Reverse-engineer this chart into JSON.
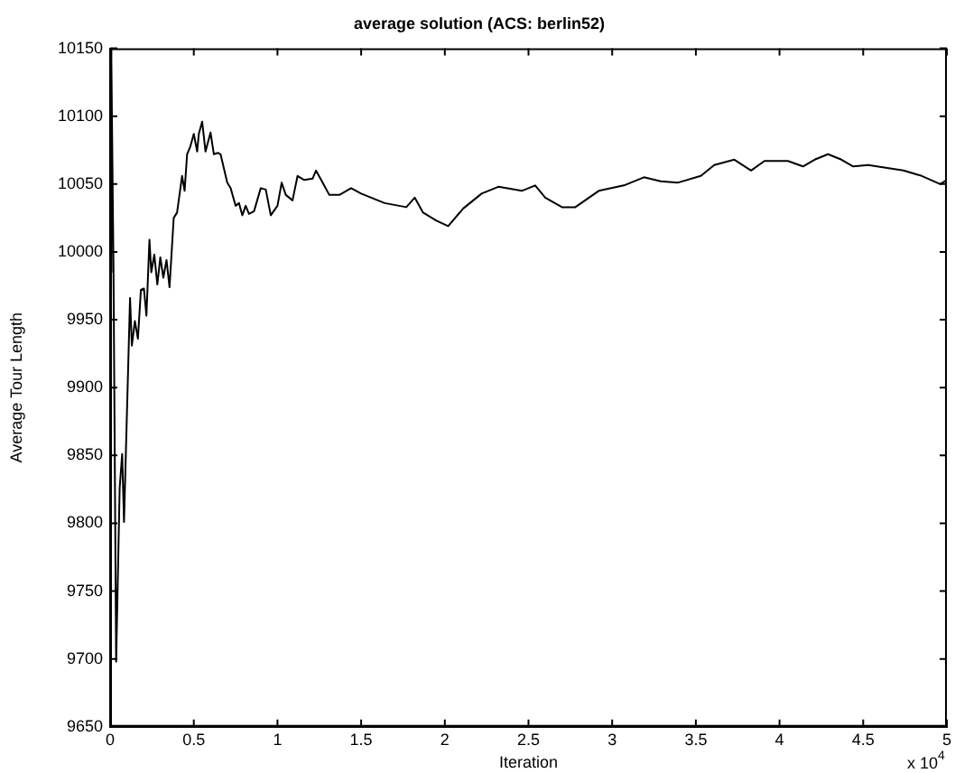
{
  "chart_data": {
    "type": "line",
    "title": "average solution (ACS: berlin52)",
    "xlabel": "Iteration",
    "ylabel": "Average Tour Length",
    "annotations": [
      "x 10$^{4}$"
    ],
    "xlim": [
      0,
      5
    ],
    "xticks": [
      0,
      0.5,
      1,
      1.5,
      2,
      2.5,
      3,
      3.5,
      4,
      4.5,
      5
    ],
    "ylim": [
      9650,
      10150
    ],
    "yticks": [
      9650,
      9700,
      9750,
      9800,
      9850,
      9900,
      9950,
      10000,
      10050,
      10100,
      10150
    ],
    "grid": false,
    "legend": false,
    "marker": "none",
    "line_style": "solid",
    "series": [
      {
        "color": "#000000",
        "x": [
          0,
          0.005,
          0.01,
          0.02,
          0.036,
          0.057,
          0.072,
          0.083,
          0.119,
          0.13,
          0.148,
          0.166,
          0.184,
          0.202,
          0.217,
          0.235,
          0.246,
          0.264,
          0.282,
          0.3,
          0.318,
          0.337,
          0.355,
          0.38,
          0.4,
          0.43,
          0.445,
          0.46,
          0.48,
          0.5,
          0.52,
          0.53,
          0.55,
          0.57,
          0.6,
          0.62,
          0.645,
          0.66,
          0.7,
          0.72,
          0.75,
          0.77,
          0.79,
          0.81,
          0.83,
          0.86,
          0.9,
          0.93,
          0.96,
          1.0,
          1.025,
          1.05,
          1.09,
          1.12,
          1.16,
          1.21,
          1.23,
          1.27,
          1.31,
          1.37,
          1.44,
          1.5,
          1.64,
          1.77,
          1.82,
          1.87,
          1.95,
          2.02,
          2.11,
          2.22,
          2.32,
          2.46,
          2.54,
          2.6,
          2.7,
          2.78,
          2.92,
          3.07,
          3.19,
          3.29,
          3.39,
          3.53,
          3.61,
          3.73,
          3.83,
          3.91,
          4.05,
          4.14,
          4.21,
          4.29,
          4.37,
          4.44,
          4.53,
          4.74,
          4.85,
          4.96,
          5.0
        ],
        "values": [
          10150,
          9985,
          10140,
          9990,
          9698,
          9826,
          9851,
          9801,
          9966,
          9931,
          9949,
          9936,
          9972,
          9973,
          9953,
          10009,
          9985,
          9998,
          9976,
          9996,
          9981,
          9994,
          9974,
          10025,
          10029,
          10056,
          10045,
          10072,
          10078,
          10087,
          10074,
          10087,
          10096,
          10074,
          10088,
          10072,
          10073,
          10072,
          10051,
          10047,
          10034,
          10036,
          10027,
          10034,
          10028,
          10030,
          10047,
          10046,
          10027,
          10034,
          10051,
          10042,
          10038,
          10056,
          10053,
          10054,
          10060,
          10051,
          10042,
          10042,
          10047,
          10043,
          10036,
          10033,
          10040,
          10029,
          10023,
          10019,
          10032,
          10043,
          10048,
          10045,
          10049,
          10040,
          10033,
          10033,
          10045,
          10049,
          10055,
          10052,
          10051,
          10056,
          10064,
          10068,
          10060,
          10067,
          10067,
          10063,
          10068,
          10072,
          10068,
          10063,
          10064,
          10060,
          10056,
          10050,
          10053
        ]
      }
    ]
  }
}
